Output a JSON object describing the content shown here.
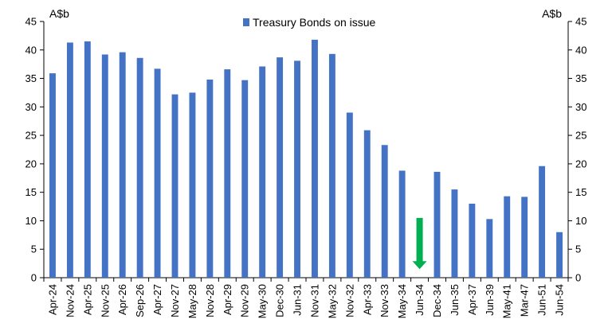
{
  "chart_data": {
    "type": "bar",
    "title": "",
    "xlabel": "",
    "ylabel_left": "A$b",
    "ylabel_right": "A$b",
    "ylim": [
      0,
      45
    ],
    "yticks": [
      0,
      5,
      10,
      15,
      20,
      25,
      30,
      35,
      40,
      45
    ],
    "grid": false,
    "legend_position": "top-center",
    "categories": [
      "Apr-24",
      "Nov-24",
      "Apr-25",
      "Nov-25",
      "Apr-26",
      "Sep-26",
      "Apr-27",
      "Nov-27",
      "May-28",
      "Nov-28",
      "Apr-29",
      "Nov-29",
      "May-30",
      "Dec-30",
      "Jun-31",
      "Nov-31",
      "May-32",
      "Nov-32",
      "Apr-33",
      "Nov-33",
      "May-34",
      "Jun-34",
      "Dec-34",
      "Jun-35",
      "Apr-37",
      "Jun-39",
      "May-41",
      "Mar-47",
      "Jun-51",
      "Jun-54"
    ],
    "series": [
      {
        "name": "Treasury Bonds on issue",
        "color": "#4472C4",
        "values": [
          35.9,
          41.3,
          41.5,
          39.2,
          39.6,
          38.6,
          36.7,
          32.2,
          32.5,
          34.8,
          36.6,
          34.7,
          37.1,
          38.7,
          38.1,
          41.8,
          39.3,
          29.0,
          25.9,
          23.3,
          18.8,
          null,
          18.6,
          15.5,
          13.0,
          10.3,
          14.3,
          14.2,
          19.6,
          8.0
        ]
      }
    ],
    "annotations": [
      {
        "type": "arrow-down",
        "category": "Jun-34",
        "from": 10.5,
        "to": 1.5,
        "color": "#00B050"
      }
    ]
  }
}
